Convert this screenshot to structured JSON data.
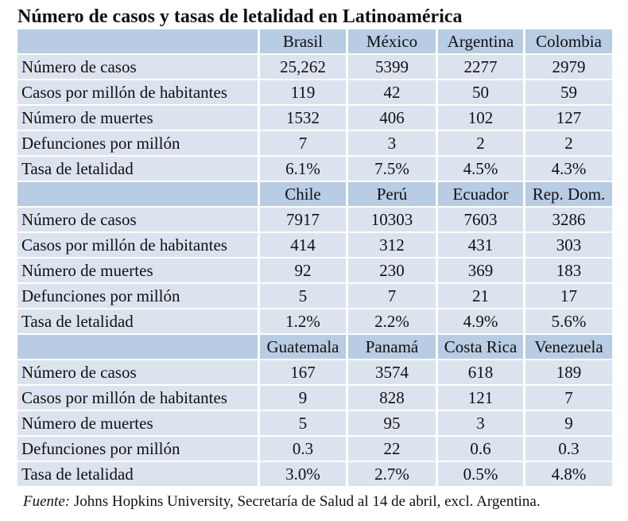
{
  "title": "Número de casos y tasas de letalidad en Latinoamérica",
  "row_labels": [
    "Número de casos",
    "Casos por millón de habitantes",
    "Número de muertes",
    "Defunciones por millón",
    "Tasa de letalidad"
  ],
  "groups": [
    {
      "countries": [
        "Brasil",
        "México",
        "Argentina",
        "Colombia"
      ],
      "rows": [
        [
          "25,262",
          "5399",
          "2277",
          "2979"
        ],
        [
          "119",
          "42",
          "50",
          "59"
        ],
        [
          "1532",
          "406",
          "102",
          "127"
        ],
        [
          "7",
          "3",
          "2",
          "2"
        ],
        [
          "6.1%",
          "7.5%",
          "4.5%",
          "4.3%"
        ]
      ]
    },
    {
      "countries": [
        "Chile",
        "Perú",
        "Ecuador",
        "Rep. Dom."
      ],
      "rows": [
        [
          "7917",
          "10303",
          "7603",
          "3286"
        ],
        [
          "414",
          "312",
          "431",
          "303"
        ],
        [
          "92",
          "230",
          "369",
          "183"
        ],
        [
          "5",
          "7",
          "21",
          "17"
        ],
        [
          "1.2%",
          "2.2%",
          "4.9%",
          "5.6%"
        ]
      ]
    },
    {
      "countries": [
        "Guatemala",
        "Panamá",
        "Costa Rica",
        "Venezuela"
      ],
      "rows": [
        [
          "167",
          "3574",
          "618",
          "189"
        ],
        [
          "9",
          "828",
          "121",
          "7"
        ],
        [
          "5",
          "95",
          "3",
          "9"
        ],
        [
          "0.3",
          "22",
          "0.6",
          "0.3"
        ],
        [
          "3.0%",
          "2.7%",
          "0.5%",
          "4.8%"
        ]
      ]
    }
  ],
  "source": {
    "label": "Fuente:",
    "text": "Johns Hopkins University, Secretaría de Salud al 14 de abril, excl. Argentina."
  },
  "colors": {
    "header_fill": "#b8cce4",
    "row_fill": "#dbe3ef"
  }
}
